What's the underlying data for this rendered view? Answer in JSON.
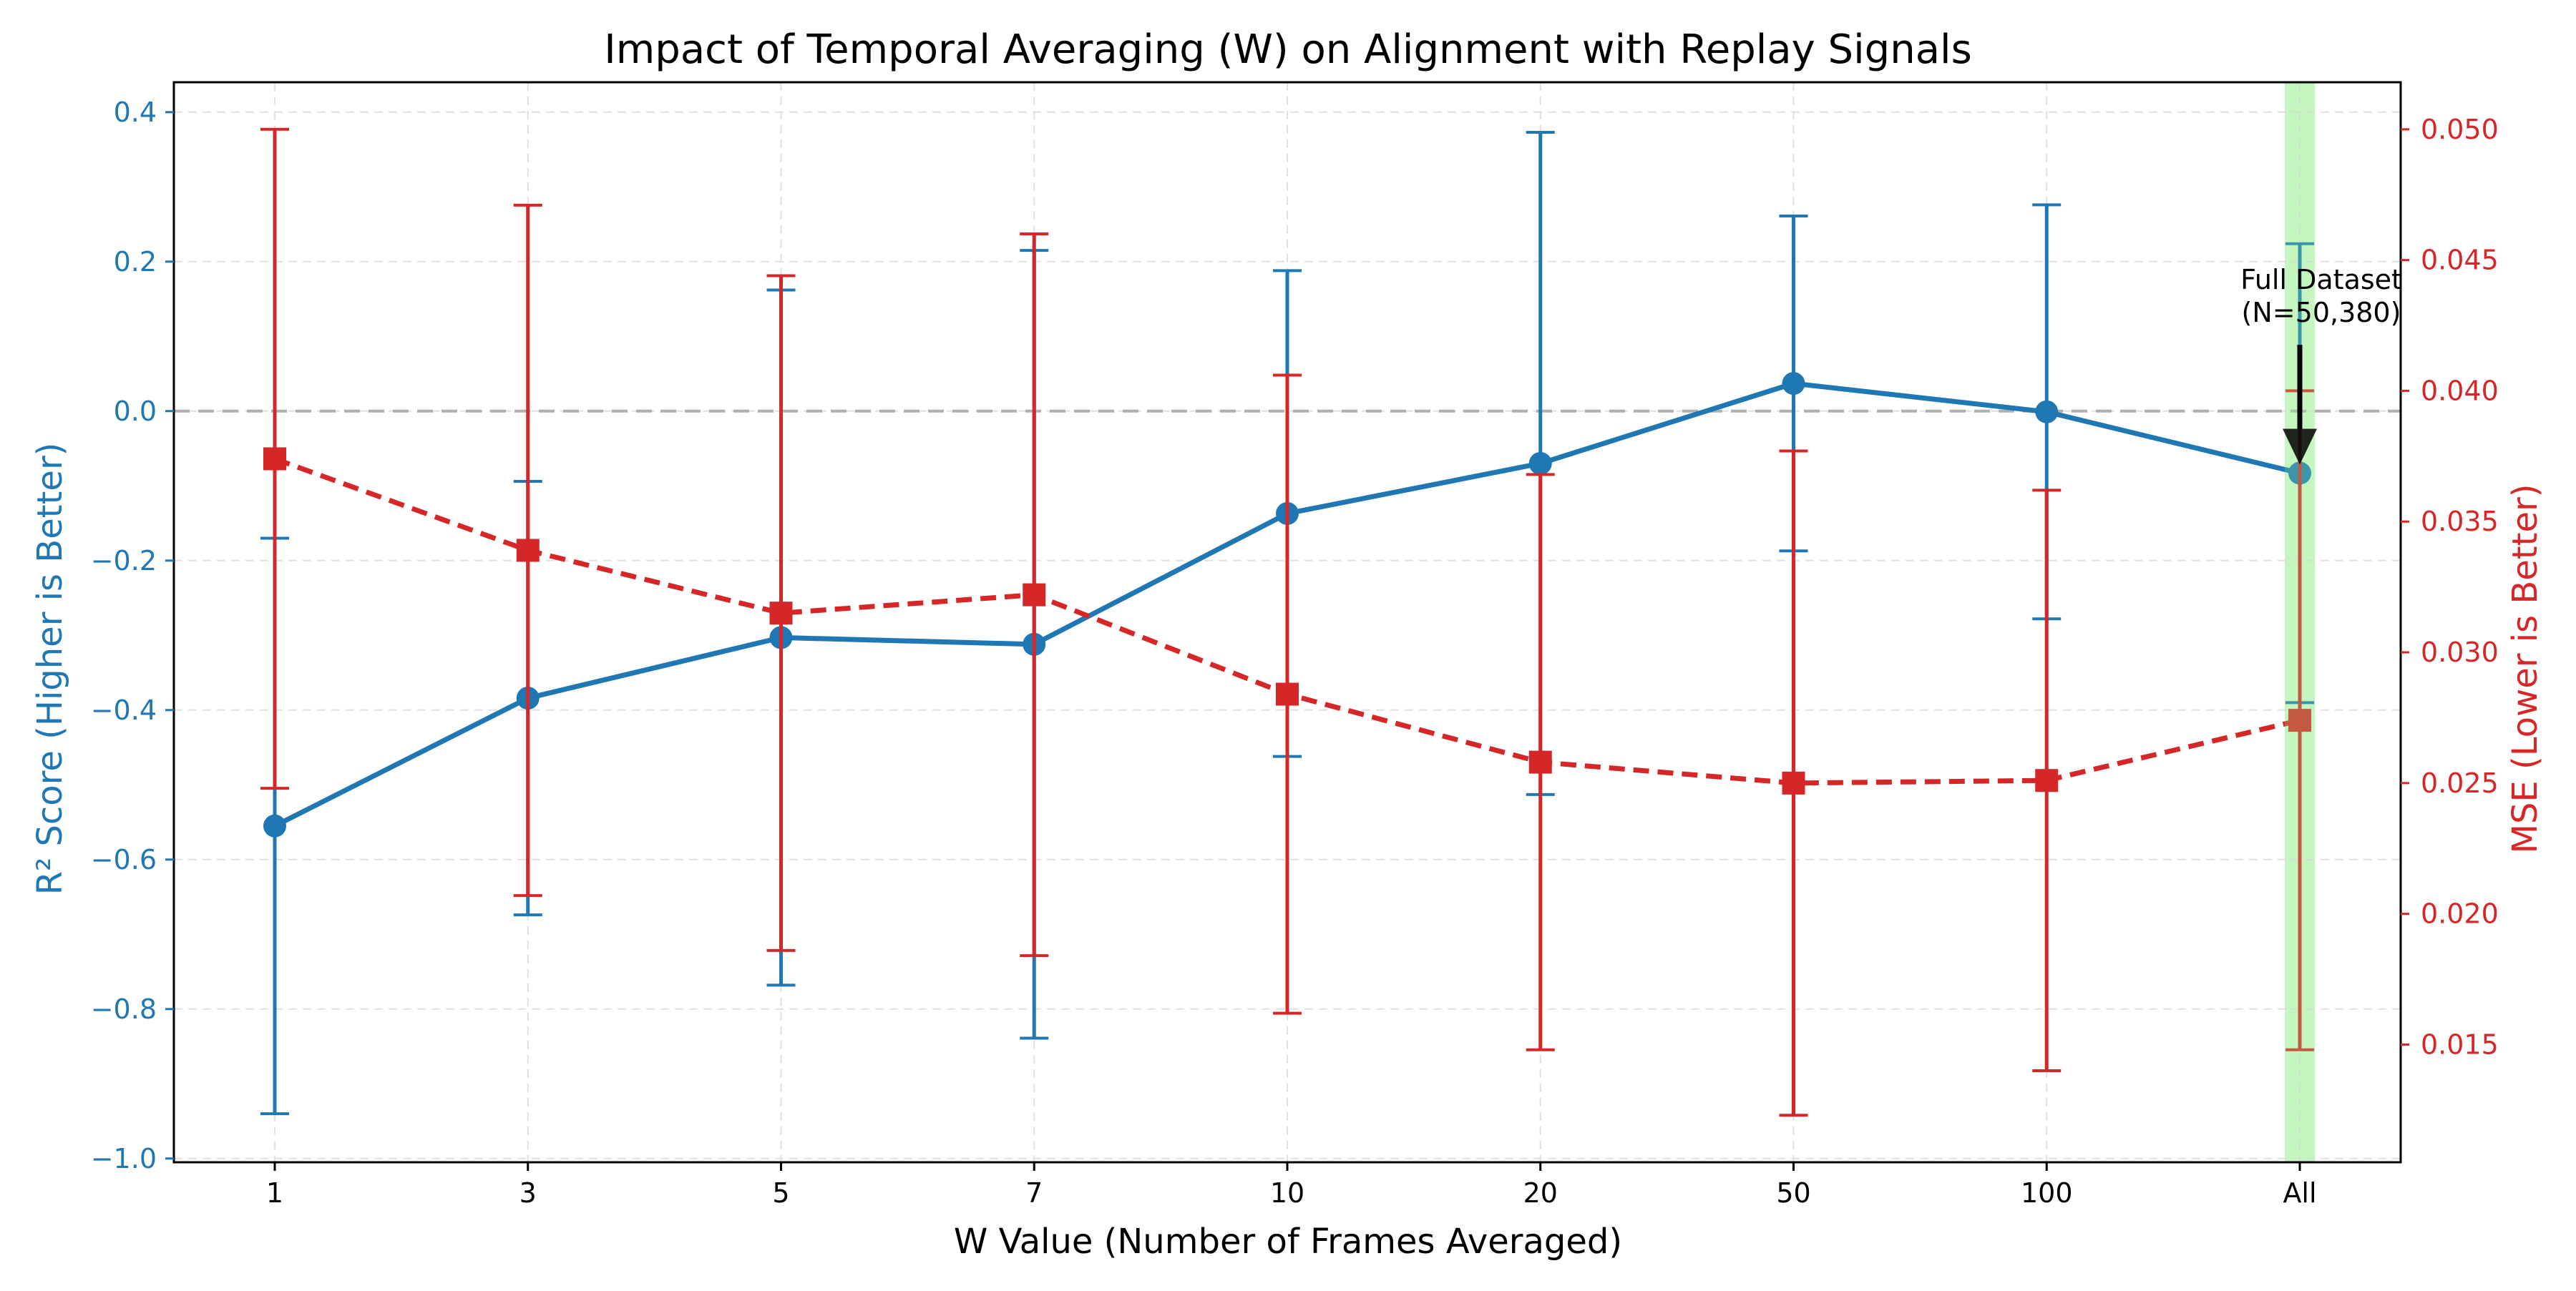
{
  "chart_data": {
    "type": "line",
    "title": "Impact of Temporal Averaging (W) on Alignment with Replay Signals",
    "xlabel": "W Value (Number of Frames Averaged)",
    "categories": [
      "1",
      "3",
      "5",
      "7",
      "10",
      "20",
      "50",
      "100",
      "All"
    ],
    "grid": true,
    "series": [
      {
        "axis": "left",
        "color": "#1f77b4",
        "linestyle": "solid",
        "marker": "circle",
        "values": [
          -0.555,
          -0.384,
          -0.303,
          -0.312,
          -0.137,
          -0.07,
          0.037,
          -0.001,
          -0.083
        ],
        "errors": [
          0.385,
          0.29,
          0.465,
          0.527,
          0.325,
          0.443,
          0.224,
          0.277,
          0.307
        ]
      },
      {
        "axis": "right",
        "color": "#d62728",
        "linestyle": "dashed",
        "marker": "square",
        "values": [
          0.0374,
          0.0339,
          0.0315,
          0.0322,
          0.0284,
          0.0258,
          0.025,
          0.0251,
          0.0274
        ],
        "errors": [
          0.0126,
          0.0132,
          0.0129,
          0.0138,
          0.0122,
          0.011,
          0.0127,
          0.0111,
          0.0126
        ]
      }
    ],
    "y_left": {
      "label": "R² Score (Higher is Better)",
      "color": "#1f77b4",
      "lim": [
        -1.005,
        0.44
      ],
      "ticks": [
        0.4,
        0.2,
        0.0,
        -0.2,
        -0.4,
        -0.6,
        -0.8,
        -1.0
      ],
      "tick_labels": [
        "0.4",
        "0.2",
        "0.0",
        "−0.2",
        "−0.4",
        "−0.6",
        "−0.8",
        "−1.0"
      ]
    },
    "y_right": {
      "label": "MSE (Lower is Better)",
      "color": "#d62728",
      "lim": [
        0.0105,
        0.0518
      ],
      "ticks": [
        0.05,
        0.045,
        0.04,
        0.035,
        0.03,
        0.025,
        0.02,
        0.015
      ],
      "tick_labels": [
        "0.050",
        "0.045",
        "0.040",
        "0.035",
        "0.030",
        "0.025",
        "0.020",
        "0.015"
      ]
    },
    "reference_line": {
      "axis": "left",
      "y": 0.0,
      "color": "#b0b0b0",
      "linestyle": "dashed"
    },
    "highlight": {
      "category": "All",
      "color": "#d8f8d0"
    },
    "annotation": {
      "lines": [
        "Full Dataset",
        "(N=50,380)"
      ],
      "target_category": "All",
      "target_axis": "left",
      "target_y": -0.083
    }
  }
}
